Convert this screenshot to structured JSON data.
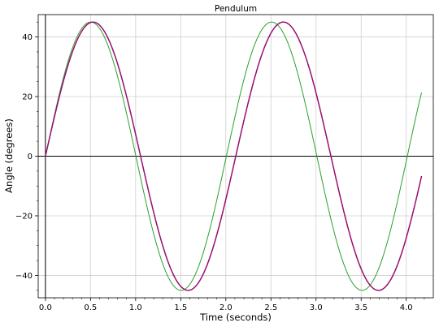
{
  "chart_data": {
    "type": "line",
    "title": "Pendulum",
    "xlabel": "Time (seconds)",
    "ylabel": "Angle (degrees)",
    "xlim": [
      -0.08,
      4.3
    ],
    "ylim": [
      -47.5,
      47.5
    ],
    "xticks": [
      0.0,
      0.5,
      1.0,
      1.5,
      2.0,
      2.5,
      3.0,
      3.5,
      4.0
    ],
    "xtick_labels": [
      "0.0",
      "0.5",
      "1.0",
      "1.5",
      "2.0",
      "2.5",
      "3.0",
      "3.5",
      "4.0"
    ],
    "yticks": [
      -40,
      -20,
      0,
      20,
      40
    ],
    "ytick_labels": [
      "−40",
      "−20",
      "0",
      "20",
      "40"
    ],
    "grid": true,
    "x_range_plotted": [
      0,
      4.17
    ],
    "series": [
      {
        "color": "#2ca02c",
        "amplitude": 45,
        "period": 2.006
      },
      {
        "color": "#1f77b4",
        "amplitude": 45,
        "period": 2.11
      },
      {
        "color": "#d62728",
        "amplitude": 45,
        "period": 2.11
      },
      {
        "color": "#9b0f7a",
        "amplitude": 45,
        "period": 2.11
      }
    ]
  }
}
